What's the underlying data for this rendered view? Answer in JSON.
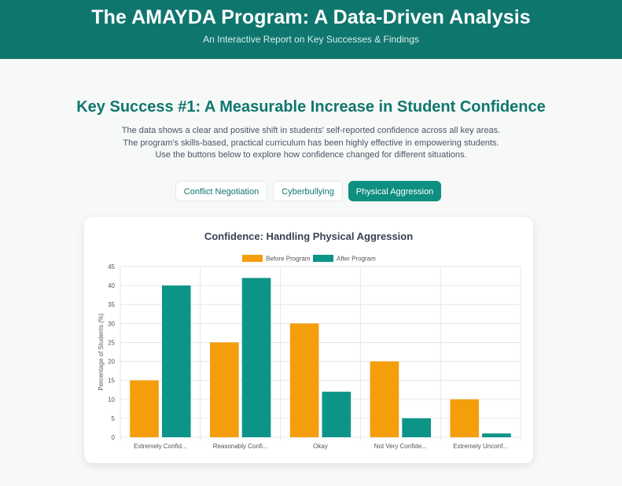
{
  "header": {
    "title": "The AMAYDA Program: A Data-Driven Analysis",
    "subtitle": "An Interactive Report on Key Successes & Findings"
  },
  "section": {
    "title": "Key Success #1: A Measurable Increase in Student Confidence",
    "description": [
      "The data shows a clear and positive shift in students' self-reported confidence across all key areas.",
      "The program's skills-based, practical curriculum has been highly effective in empowering students.",
      "Use the buttons below to explore how confidence changed for different situations."
    ]
  },
  "buttons": [
    {
      "label": "Conflict Negotiation",
      "active": false
    },
    {
      "label": "Cyberbullying",
      "active": false
    },
    {
      "label": "Physical Aggression",
      "active": true
    }
  ],
  "colors": {
    "header": "#0f766e",
    "before": "#f59e0b",
    "after": "#0d9488"
  },
  "chart_data": {
    "type": "bar",
    "title": "Confidence: Handling Physical Aggression",
    "ylabel": "Percentage of Students (%)",
    "xlabel": "",
    "categories": [
      "Extremely Confid...",
      "Reasonably Confi...",
      "Okay",
      "Not Very Confide...",
      "Extremely Unconf..."
    ],
    "series": [
      {
        "name": "Before Program",
        "values": [
          15,
          25,
          30,
          20,
          10
        ],
        "color": "#f59e0b"
      },
      {
        "name": "After Program",
        "values": [
          40,
          42,
          12,
          5,
          1
        ],
        "color": "#0d9488"
      }
    ],
    "ylim": [
      0,
      45
    ],
    "yticks": [
      0,
      5,
      10,
      15,
      20,
      25,
      30,
      35,
      40,
      45
    ],
    "grid": true,
    "legend": "top-center"
  }
}
